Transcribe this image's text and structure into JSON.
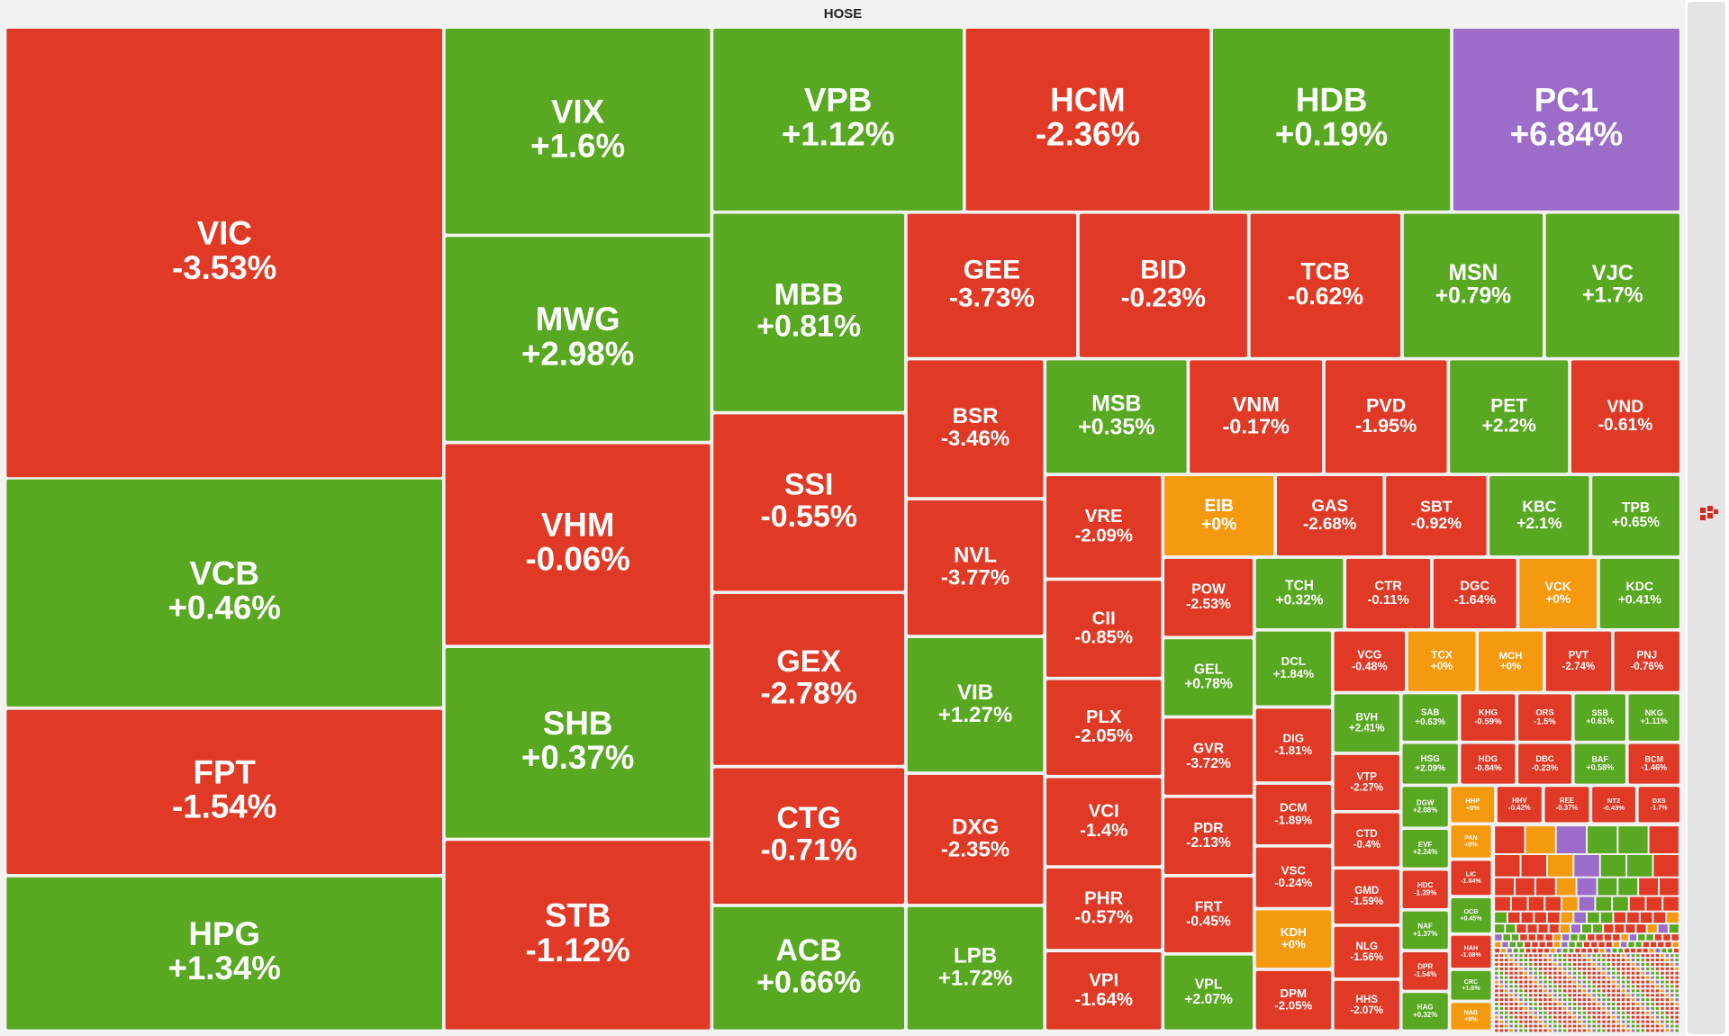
{
  "header": {
    "title": "HOSE"
  },
  "tiles": [
    {
      "symbol": "VIC",
      "change": "-3.53%",
      "color": "#e03a26"
    },
    {
      "symbol": "VCB",
      "change": "+0.46%",
      "color": "#58a822"
    },
    {
      "symbol": "FPT",
      "change": "-1.54%",
      "color": "#e03a26"
    },
    {
      "symbol": "HPG",
      "change": "+1.34%",
      "color": "#58a822"
    },
    {
      "symbol": "VIX",
      "change": "+1.6%",
      "color": "#58a822"
    },
    {
      "symbol": "MWG",
      "change": "+2.98%",
      "color": "#58a822"
    },
    {
      "symbol": "VHM",
      "change": "-0.06%",
      "color": "#e03a26"
    },
    {
      "symbol": "SHB",
      "change": "+0.37%",
      "color": "#58a822"
    },
    {
      "symbol": "STB",
      "change": "-1.12%",
      "color": "#e03a26"
    },
    {
      "symbol": "VPB",
      "change": "+1.12%",
      "color": "#58a822"
    },
    {
      "symbol": "HCM",
      "change": "-2.36%",
      "color": "#e03a26"
    },
    {
      "symbol": "HDB",
      "change": "+0.19%",
      "color": "#58a822"
    },
    {
      "symbol": "PC1",
      "change": "+6.84%",
      "color": "#9b6cc8"
    },
    {
      "symbol": "MBB",
      "change": "+0.81%",
      "color": "#58a822"
    },
    {
      "symbol": "SSI",
      "change": "-0.55%",
      "color": "#e03a26"
    },
    {
      "symbol": "GEX",
      "change": "-2.78%",
      "color": "#e03a26"
    },
    {
      "symbol": "CTG",
      "change": "-0.71%",
      "color": "#e03a26"
    },
    {
      "symbol": "ACB",
      "change": "+0.66%",
      "color": "#58a822"
    },
    {
      "symbol": "GEE",
      "change": "-3.73%",
      "color": "#e03a26"
    },
    {
      "symbol": "BID",
      "change": "-0.23%",
      "color": "#e03a26"
    },
    {
      "symbol": "TCB",
      "change": "-0.62%",
      "color": "#e03a26"
    },
    {
      "symbol": "MSN",
      "change": "+0.79%",
      "color": "#58a822"
    },
    {
      "symbol": "VJC",
      "change": "+1.7%",
      "color": "#58a822"
    },
    {
      "symbol": "BSR",
      "change": "-3.46%",
      "color": "#e03a26"
    },
    {
      "symbol": "NVL",
      "change": "-3.77%",
      "color": "#e03a26"
    },
    {
      "symbol": "VIB",
      "change": "+1.27%",
      "color": "#58a822"
    },
    {
      "symbol": "DXG",
      "change": "-2.35%",
      "color": "#e03a26"
    },
    {
      "symbol": "LPB",
      "change": "+1.72%",
      "color": "#58a822"
    },
    {
      "symbol": "MSB",
      "change": "+0.35%",
      "color": "#58a822"
    },
    {
      "symbol": "VNM",
      "change": "-0.17%",
      "color": "#e03a26"
    },
    {
      "symbol": "PVD",
      "change": "-1.95%",
      "color": "#e03a26"
    },
    {
      "symbol": "PET",
      "change": "+2.2%",
      "color": "#58a822"
    },
    {
      "symbol": "VND",
      "change": "-0.61%",
      "color": "#e03a26"
    },
    {
      "symbol": "VRE",
      "change": "-2.09%",
      "color": "#e03a26"
    },
    {
      "symbol": "CII",
      "change": "-0.85%",
      "color": "#e03a26"
    },
    {
      "symbol": "PLX",
      "change": "-2.05%",
      "color": "#e03a26"
    },
    {
      "symbol": "VCI",
      "change": "-1.4%",
      "color": "#e03a26"
    },
    {
      "symbol": "PHR",
      "change": "-0.57%",
      "color": "#e03a26"
    },
    {
      "symbol": "VPI",
      "change": "-1.64%",
      "color": "#e03a26"
    },
    {
      "symbol": "EIB",
      "change": "+0%",
      "color": "#f59a0e"
    },
    {
      "symbol": "GAS",
      "change": "-2.68%",
      "color": "#e03a26"
    },
    {
      "symbol": "SBT",
      "change": "-0.92%",
      "color": "#e03a26"
    },
    {
      "symbol": "KBC",
      "change": "+2.1%",
      "color": "#58a822"
    },
    {
      "symbol": "TPB",
      "change": "+0.65%",
      "color": "#58a822"
    },
    {
      "symbol": "POW",
      "change": "-2.53%",
      "color": "#e03a26"
    },
    {
      "symbol": "GEL",
      "change": "+0.78%",
      "color": "#58a822"
    },
    {
      "symbol": "GVR",
      "change": "-3.72%",
      "color": "#e03a26"
    },
    {
      "symbol": "PDR",
      "change": "-2.13%",
      "color": "#e03a26"
    },
    {
      "symbol": "FRT",
      "change": "-0.45%",
      "color": "#e03a26"
    },
    {
      "symbol": "VPL",
      "change": "+2.07%",
      "color": "#58a822"
    },
    {
      "symbol": "TCH",
      "change": "+0.32%",
      "color": "#58a822"
    },
    {
      "symbol": "CTR",
      "change": "-0.11%",
      "color": "#e03a26"
    },
    {
      "symbol": "DGC",
      "change": "-1.64%",
      "color": "#e03a26"
    },
    {
      "symbol": "VCK",
      "change": "+0%",
      "color": "#f59a0e"
    },
    {
      "symbol": "KDC",
      "change": "+0.41%",
      "color": "#58a822"
    },
    {
      "symbol": "DCL",
      "change": "+1.84%",
      "color": "#58a822"
    },
    {
      "symbol": "DIG",
      "change": "-1.81%",
      "color": "#e03a26"
    },
    {
      "symbol": "DCM",
      "change": "-1.89%",
      "color": "#e03a26"
    },
    {
      "symbol": "VSC",
      "change": "-0.24%",
      "color": "#e03a26"
    },
    {
      "symbol": "KDH",
      "change": "+0%",
      "color": "#f59a0e"
    },
    {
      "symbol": "DPM",
      "change": "-2.05%",
      "color": "#e03a26"
    },
    {
      "symbol": "VCG",
      "change": "-0.48%",
      "color": "#e03a26"
    },
    {
      "symbol": "TCX",
      "change": "+0%",
      "color": "#f59a0e"
    },
    {
      "symbol": "MCH",
      "change": "+0%",
      "color": "#f59a0e"
    },
    {
      "symbol": "PVT",
      "change": "-2.74%",
      "color": "#e03a26"
    },
    {
      "symbol": "PNJ",
      "change": "-0.76%",
      "color": "#e03a26"
    },
    {
      "symbol": "BVH",
      "change": "+2.41%",
      "color": "#58a822"
    },
    {
      "symbol": "VTP",
      "change": "-2.27%",
      "color": "#e03a26"
    },
    {
      "symbol": "CTD",
      "change": "-0.4%",
      "color": "#e03a26"
    },
    {
      "symbol": "GMD",
      "change": "-1.59%",
      "color": "#e03a26"
    },
    {
      "symbol": "NLG",
      "change": "-1.56%",
      "color": "#e03a26"
    },
    {
      "symbol": "HHS",
      "change": "-2.07%",
      "color": "#e03a26"
    },
    {
      "symbol": "SAB",
      "change": "+0.63%",
      "color": "#58a822"
    },
    {
      "symbol": "KHG",
      "change": "-0.59%",
      "color": "#e03a26"
    },
    {
      "symbol": "ORS",
      "change": "-1.5%",
      "color": "#e03a26"
    },
    {
      "symbol": "SSB",
      "change": "+0.61%",
      "color": "#58a822"
    },
    {
      "symbol": "NKG",
      "change": "+1.11%",
      "color": "#58a822"
    },
    {
      "symbol": "HSG",
      "change": "+2.09%",
      "color": "#58a822"
    },
    {
      "symbol": "HDG",
      "change": "-0.84%",
      "color": "#e03a26"
    },
    {
      "symbol": "DBC",
      "change": "-0.23%",
      "color": "#e03a26"
    },
    {
      "symbol": "BAF",
      "change": "+0.58%",
      "color": "#58a822"
    },
    {
      "symbol": "BCM",
      "change": "-1.46%",
      "color": "#e03a26"
    },
    {
      "symbol": "DGW",
      "change": "+2.08%",
      "color": "#58a822"
    },
    {
      "symbol": "EVF",
      "change": "+2.24%",
      "color": "#58a822"
    },
    {
      "symbol": "HDC",
      "change": "-1.39%",
      "color": "#e03a26"
    },
    {
      "symbol": "NAF",
      "change": "+1.37%",
      "color": "#58a822"
    },
    {
      "symbol": "DPR",
      "change": "-1.54%",
      "color": "#e03a26"
    },
    {
      "symbol": "HAG",
      "change": "+0.32%",
      "color": "#58a822"
    },
    {
      "symbol": "HHP",
      "change": "+0%",
      "color": "#f59a0e"
    },
    {
      "symbol": "HHV",
      "change": "-0.42%",
      "color": "#e03a26"
    },
    {
      "symbol": "REE",
      "change": "-0.37%",
      "color": "#e03a26"
    },
    {
      "symbol": "NT2",
      "change": "-0.43%",
      "color": "#e03a26"
    },
    {
      "symbol": "DXS",
      "change": "-1.7%",
      "color": "#e03a26"
    },
    {
      "symbol": "PAN",
      "change": "+0%",
      "color": "#f59a0e"
    },
    {
      "symbol": "LIC",
      "change": "-1.84%",
      "color": "#e03a26"
    },
    {
      "symbol": "OCB",
      "change": "+0.45%",
      "color": "#58a822"
    },
    {
      "symbol": "HAH",
      "change": "-1.08%",
      "color": "#e03a26"
    },
    {
      "symbol": "CRC",
      "change": "+1.6%",
      "color": "#58a822"
    },
    {
      "symbol": "NAB",
      "change": "+0%",
      "color": "#f59a0e"
    }
  ]
}
